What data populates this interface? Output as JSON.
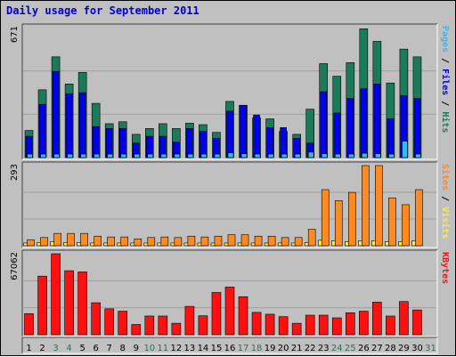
{
  "title": "Daily usage for September 2011",
  "colors": {
    "background": "#c0c0c0",
    "title": "#0000cc",
    "hits": "#1b7a5a",
    "files": "#0000ee",
    "pages": "#33bbee",
    "sites": "#ff8a20",
    "visits": "#ffee33",
    "kbytes": "#ff1010",
    "weekend_day": "#1b7a5a"
  },
  "chart_data": [
    {
      "type": "bar",
      "id": "hits-files-pages",
      "ymax_label": "671",
      "legend": [
        {
          "text": "Hits",
          "color": "#1b7a5a"
        },
        {
          "text": "Files",
          "color": "#0000ee"
        },
        {
          "text": "Pages",
          "color": "#33bbee"
        }
      ],
      "ylim": [
        0,
        671
      ],
      "categories": [
        "1",
        "2",
        "3",
        "4",
        "5",
        "6",
        "7",
        "8",
        "9",
        "10",
        "11",
        "12",
        "13",
        "14",
        "15",
        "16",
        "17",
        "18",
        "19",
        "20",
        "21",
        "22",
        "23",
        "24",
        "25",
        "26",
        "27",
        "28",
        "29",
        "30",
        "31"
      ],
      "series": [
        {
          "name": "Hits",
          "values": [
            140,
            350,
            520,
            380,
            440,
            280,
            175,
            185,
            120,
            150,
            175,
            150,
            178,
            170,
            130,
            290,
            270,
            205,
            200,
            135,
            120,
            250,
            485,
            420,
            490,
            665,
            600,
            385,
            560,
            520,
            0
          ]
        },
        {
          "name": "Files",
          "values": [
            110,
            275,
            445,
            330,
            335,
            160,
            150,
            150,
            75,
            110,
            110,
            80,
            150,
            135,
            100,
            240,
            270,
            220,
            155,
            155,
            100,
            75,
            340,
            230,
            305,
            355,
            380,
            200,
            320,
            305,
            0
          ]
        },
        {
          "name": "Pages",
          "values": [
            18,
            18,
            18,
            18,
            18,
            18,
            18,
            18,
            18,
            18,
            18,
            18,
            18,
            18,
            18,
            25,
            20,
            18,
            18,
            18,
            18,
            28,
            20,
            18,
            18,
            22,
            20,
            18,
            85,
            18,
            0
          ]
        }
      ]
    },
    {
      "type": "bar",
      "id": "sites-visits",
      "ymax_label": "293",
      "legend": [
        {
          "text": "Visits",
          "color": "#ffee33"
        },
        {
          "text": "Sites",
          "color": "#ff8a20"
        }
      ],
      "ylim": [
        0,
        293
      ],
      "categories": [
        "1",
        "2",
        "3",
        "4",
        "5",
        "6",
        "7",
        "8",
        "9",
        "10",
        "11",
        "12",
        "13",
        "14",
        "15",
        "16",
        "17",
        "18",
        "19",
        "20",
        "21",
        "22",
        "23",
        "24",
        "25",
        "26",
        "27",
        "28",
        "29",
        "30",
        "31"
      ],
      "series": [
        {
          "name": "Visits",
          "values": [
            10,
            12,
            15,
            12,
            12,
            10,
            10,
            10,
            10,
            10,
            10,
            10,
            10,
            10,
            10,
            10,
            10,
            10,
            10,
            10,
            10,
            12,
            20,
            18,
            15,
            18,
            18,
            15,
            15,
            18,
            0
          ]
        },
        {
          "name": "Sites",
          "values": [
            22,
            30,
            45,
            45,
            45,
            35,
            32,
            32,
            25,
            30,
            32,
            30,
            35,
            32,
            35,
            40,
            40,
            35,
            35,
            30,
            30,
            60,
            205,
            165,
            195,
            293,
            293,
            175,
            150,
            205,
            0
          ]
        }
      ]
    },
    {
      "type": "bar",
      "id": "kbytes",
      "ymax_label": "67062",
      "legend": [
        {
          "text": "KBytes",
          "color": "#ff1010"
        }
      ],
      "ylim": [
        0,
        67062
      ],
      "categories": [
        "1",
        "2",
        "3",
        "4",
        "5",
        "6",
        "7",
        "8",
        "9",
        "10",
        "11",
        "12",
        "13",
        "14",
        "15",
        "16",
        "17",
        "18",
        "19",
        "20",
        "21",
        "22",
        "23",
        "24",
        "25",
        "26",
        "27",
        "28",
        "29",
        "30",
        "31"
      ],
      "series": [
        {
          "name": "KBytes",
          "values": [
            17500,
            48500,
            67062,
            53000,
            52000,
            26500,
            21500,
            19500,
            8500,
            15500,
            15500,
            9500,
            23500,
            15700,
            35000,
            39500,
            31500,
            18500,
            17000,
            15000,
            9500,
            16200,
            16200,
            14000,
            18200,
            19500,
            27000,
            15500,
            27500,
            20500,
            0
          ]
        }
      ]
    }
  ],
  "x_axis": {
    "labels": [
      "1",
      "2",
      "3",
      "4",
      "5",
      "6",
      "7",
      "8",
      "9",
      "10",
      "11",
      "12",
      "13",
      "14",
      "15",
      "16",
      "17",
      "18",
      "19",
      "20",
      "21",
      "22",
      "23",
      "24",
      "25",
      "26",
      "27",
      "28",
      "29",
      "30",
      "31"
    ],
    "weekend": [
      3,
      4,
      10,
      11,
      17,
      18,
      24,
      25,
      31
    ]
  }
}
